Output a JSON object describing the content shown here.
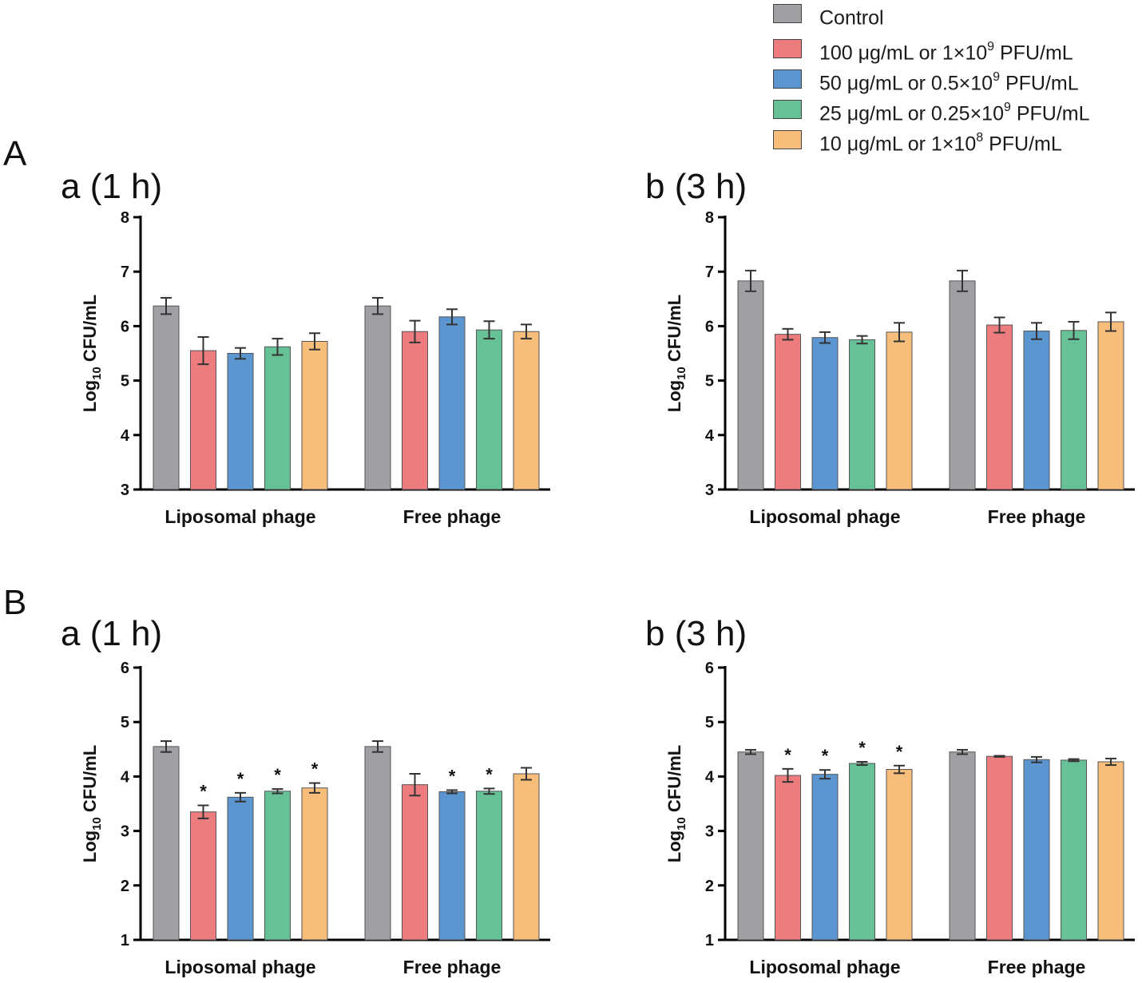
{
  "figure": {
    "panel_labels": [
      "A",
      "B"
    ]
  },
  "legend": {
    "items": [
      {
        "prefix": "Control",
        "sup": "",
        "suffix": "",
        "color": "#a0a0a4"
      },
      {
        "prefix": "100 μg/mL or 1×10",
        "sup": "9",
        "suffix": " PFU/mL",
        "color": "#ec7c7e"
      },
      {
        "prefix": "50 μg/mL or 0.5×10",
        "sup": "9",
        "suffix": " PFU/mL",
        "color": "#5b96d0"
      },
      {
        "prefix": "25 μg/mL or 0.25×10",
        "sup": "9",
        "suffix": " PFU/mL",
        "color": "#67c197"
      },
      {
        "prefix": "10 μg/mL or 1×10",
        "sup": "8",
        "suffix": " PFU/mL",
        "color": "#f7bd7a"
      }
    ]
  },
  "chart_data": [
    {
      "id": "A-a",
      "type": "bar",
      "title": "a (1 h)",
      "ylabel_main": "Log",
      "ylabel_sub": "10",
      "ylabel_rest": " CFU/mL",
      "ylim": [
        3,
        8
      ],
      "yticks": [
        3,
        4,
        5,
        6,
        7,
        8
      ],
      "categories": [
        "Liposomal phage",
        "Free phage"
      ],
      "series": [
        {
          "name": "Control",
          "values": [
            6.37,
            6.37
          ],
          "errors": [
            0.15,
            0.15
          ],
          "sig": [
            "",
            ""
          ]
        },
        {
          "name": "100 μg/mL or 1×10^9 PFU/mL",
          "values": [
            5.55,
            5.9
          ],
          "errors": [
            0.25,
            0.2
          ],
          "sig": [
            "",
            ""
          ]
        },
        {
          "name": "50 μg/mL or 0.5×10^9 PFU/mL",
          "values": [
            5.5,
            6.17
          ],
          "errors": [
            0.1,
            0.14
          ],
          "sig": [
            "",
            ""
          ]
        },
        {
          "name": "25 μg/mL or 0.25×10^9 PFU/mL",
          "values": [
            5.62,
            5.93
          ],
          "errors": [
            0.15,
            0.16
          ],
          "sig": [
            "",
            ""
          ]
        },
        {
          "name": "10 μg/mL or 1×10^8 PFU/mL",
          "values": [
            5.72,
            5.9
          ],
          "errors": [
            0.15,
            0.13
          ],
          "sig": [
            "",
            ""
          ]
        }
      ]
    },
    {
      "id": "A-b",
      "type": "bar",
      "title": "b (3 h)",
      "ylabel_main": "Log",
      "ylabel_sub": "10",
      "ylabel_rest": " CFU/mL",
      "ylim": [
        3,
        8
      ],
      "yticks": [
        3,
        4,
        5,
        6,
        7,
        8
      ],
      "categories": [
        "Liposomal phage",
        "Free phage"
      ],
      "series": [
        {
          "name": "Control",
          "values": [
            6.83,
            6.83
          ],
          "errors": [
            0.19,
            0.19
          ],
          "sig": [
            "",
            ""
          ]
        },
        {
          "name": "100 μg/mL or 1×10^9 PFU/mL",
          "values": [
            5.85,
            6.02
          ],
          "errors": [
            0.1,
            0.14
          ],
          "sig": [
            "",
            ""
          ]
        },
        {
          "name": "50 μg/mL or 0.5×10^9 PFU/mL",
          "values": [
            5.79,
            5.91
          ],
          "errors": [
            0.1,
            0.15
          ],
          "sig": [
            "",
            ""
          ]
        },
        {
          "name": "25 μg/mL or 0.25×10^9 PFU/mL",
          "values": [
            5.75,
            5.92
          ],
          "errors": [
            0.07,
            0.16
          ],
          "sig": [
            "",
            ""
          ]
        },
        {
          "name": "10 μg/mL or 1×10^8 PFU/mL",
          "values": [
            5.89,
            6.08
          ],
          "errors": [
            0.17,
            0.17
          ],
          "sig": [
            "",
            ""
          ]
        }
      ]
    },
    {
      "id": "B-a",
      "type": "bar",
      "title": "a (1 h)",
      "ylabel_main": "Log",
      "ylabel_sub": "10",
      "ylabel_rest": " CFU/mL",
      "ylim": [
        1,
        6
      ],
      "yticks": [
        1,
        2,
        3,
        4,
        5,
        6
      ],
      "categories": [
        "Liposomal phage",
        "Free phage"
      ],
      "series": [
        {
          "name": "Control",
          "values": [
            4.55,
            4.55
          ],
          "errors": [
            0.1,
            0.1
          ],
          "sig": [
            "",
            ""
          ]
        },
        {
          "name": "100 μg/mL or 1×10^9 PFU/mL",
          "values": [
            3.35,
            3.85
          ],
          "errors": [
            0.12,
            0.2
          ],
          "sig": [
            "*",
            ""
          ]
        },
        {
          "name": "50 μg/mL or 0.5×10^9 PFU/mL",
          "values": [
            3.62,
            3.72
          ],
          "errors": [
            0.08,
            0.03
          ],
          "sig": [
            "*",
            "*"
          ]
        },
        {
          "name": "25 μg/mL or 0.25×10^9 PFU/mL",
          "values": [
            3.73,
            3.73
          ],
          "errors": [
            0.04,
            0.05
          ],
          "sig": [
            "*",
            "*"
          ]
        },
        {
          "name": "10 μg/mL or 1×10^8 PFU/mL",
          "values": [
            3.79,
            4.05
          ],
          "errors": [
            0.09,
            0.11
          ],
          "sig": [
            "*",
            ""
          ]
        }
      ]
    },
    {
      "id": "B-b",
      "type": "bar",
      "title": "b (3 h)",
      "ylabel_main": "Log",
      "ylabel_sub": "10",
      "ylabel_rest": " CFU/mL",
      "ylim": [
        1,
        6
      ],
      "yticks": [
        1,
        2,
        3,
        4,
        5,
        6
      ],
      "categories": [
        "Liposomal phage",
        "Free phage"
      ],
      "series": [
        {
          "name": "Control",
          "values": [
            4.45,
            4.45
          ],
          "errors": [
            0.04,
            0.04
          ],
          "sig": [
            "",
            ""
          ]
        },
        {
          "name": "100 μg/mL or 1×10^9 PFU/mL",
          "values": [
            4.02,
            4.37
          ],
          "errors": [
            0.12,
            0.01
          ],
          "sig": [
            "*",
            ""
          ]
        },
        {
          "name": "50 μg/mL or 0.5×10^9 PFU/mL",
          "values": [
            4.04,
            4.31
          ],
          "errors": [
            0.08,
            0.05
          ],
          "sig": [
            "*",
            ""
          ]
        },
        {
          "name": "25 μg/mL or 0.25×10^9 PFU/mL",
          "values": [
            4.24,
            4.3
          ],
          "errors": [
            0.03,
            0.02
          ],
          "sig": [
            "*",
            ""
          ]
        },
        {
          "name": "10 μg/mL or 1×10^8 PFU/mL",
          "values": [
            4.13,
            4.27
          ],
          "errors": [
            0.07,
            0.06
          ],
          "sig": [
            "*",
            ""
          ]
        }
      ]
    }
  ]
}
